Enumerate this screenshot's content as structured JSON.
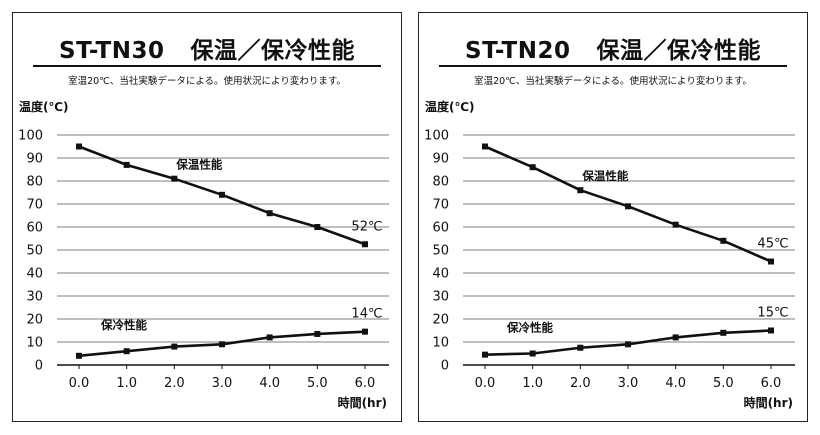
{
  "panels": [
    {
      "model": "ST-TN30",
      "subtitle": "保温／保冷性能",
      "note": "室温20℃、当社実験データによる。使用状況により変わります。",
      "chart_data": {
        "type": "line",
        "ylabel": "温度(℃)",
        "xlabel": "時間(hr)",
        "x": [
          0.0,
          1.0,
          2.0,
          3.0,
          4.0,
          5.0,
          6.0
        ],
        "x_tick_labels": [
          "0.0",
          "1.0",
          "2.0",
          "3.0",
          "4.0",
          "5.0",
          "6.0"
        ],
        "y_ticks": [
          0,
          10,
          20,
          30,
          40,
          50,
          60,
          70,
          80,
          90,
          100
        ],
        "ylim": [
          0,
          100
        ],
        "grid": "horizontal",
        "series": [
          {
            "name": "保温性能",
            "values": [
              95,
              87,
              81,
              74,
              66,
              60,
              52.5
            ],
            "end_label": "52℃"
          },
          {
            "name": "保冷性能",
            "values": [
              4,
              6,
              8,
              9,
              12,
              13.5,
              14.5
            ],
            "end_label": "14℃"
          }
        ]
      }
    },
    {
      "model": "ST-TN20",
      "subtitle": "保温／保冷性能",
      "note": "室温20℃、当社実験データによる。使用状況により変わります。",
      "chart_data": {
        "type": "line",
        "ylabel": "温度(℃)",
        "xlabel": "時間(hr)",
        "x": [
          0.0,
          1.0,
          2.0,
          3.0,
          4.0,
          5.0,
          6.0
        ],
        "x_tick_labels": [
          "0.0",
          "1.0",
          "2.0",
          "3.0",
          "4.0",
          "5.0",
          "6.0"
        ],
        "y_ticks": [
          0,
          10,
          20,
          30,
          40,
          50,
          60,
          70,
          80,
          90,
          100
        ],
        "ylim": [
          0,
          100
        ],
        "grid": "horizontal",
        "series": [
          {
            "name": "保温性能",
            "values": [
              95,
              86,
              76,
              69,
              61,
              54,
              45
            ],
            "end_label": "45℃"
          },
          {
            "name": "保冷性能",
            "values": [
              4.5,
              5,
              7.5,
              9,
              12,
              14,
              15
            ],
            "end_label": "15℃"
          }
        ]
      }
    }
  ]
}
